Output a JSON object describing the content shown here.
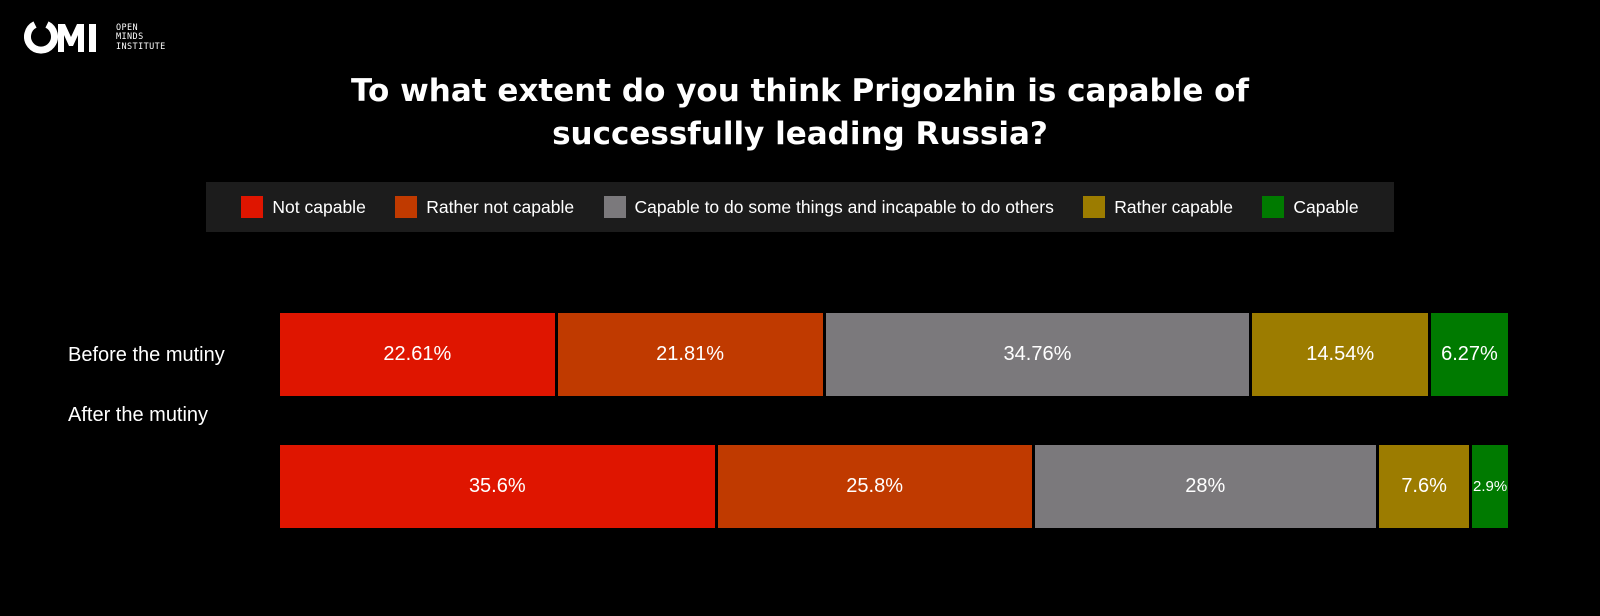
{
  "brand": {
    "logo_lines": [
      "OPEN",
      "MINDS",
      "INSTITUTE"
    ],
    "mark_text": "OMI"
  },
  "colors": {
    "background": "#000000",
    "legend_bg": "#1c1c1c",
    "text": "#ffffff"
  },
  "chart_data": {
    "type": "bar",
    "orientation": "horizontal-stacked",
    "title": "To what extent do you think Prigozhin is capable of successfully leading Russia?",
    "title_lines": [
      "To what extent do you think Prigozhin is capable of",
      "successfully leading Russia?"
    ],
    "categories": [
      "Before the mutiny",
      "After the mutiny"
    ],
    "legend_position": "top-center",
    "series": [
      {
        "name": "Not capable",
        "color": "#df1500",
        "values": [
          22.61,
          35.6
        ],
        "labels": [
          "22.61%",
          "35.6%"
        ]
      },
      {
        "name": "Rather not capable",
        "color": "#c03a00",
        "values": [
          21.81,
          25.8
        ],
        "labels": [
          "21.81%",
          "25.8%"
        ]
      },
      {
        "name": "Capable to do some things and incapable to do others",
        "color": "#7b797c",
        "values": [
          34.76,
          28
        ],
        "labels": [
          "34.76%",
          "28%"
        ]
      },
      {
        "name": "Rather capable",
        "color": "#9c7c00",
        "values": [
          14.54,
          7.6
        ],
        "labels": [
          "14.54%",
          "7.6%"
        ]
      },
      {
        "name": "Capable",
        "color": "#007a00",
        "values": [
          6.27,
          2.9
        ],
        "labels": [
          "6.27%",
          "2.9%"
        ]
      }
    ],
    "xlim": [
      0,
      100
    ],
    "grid": false
  }
}
